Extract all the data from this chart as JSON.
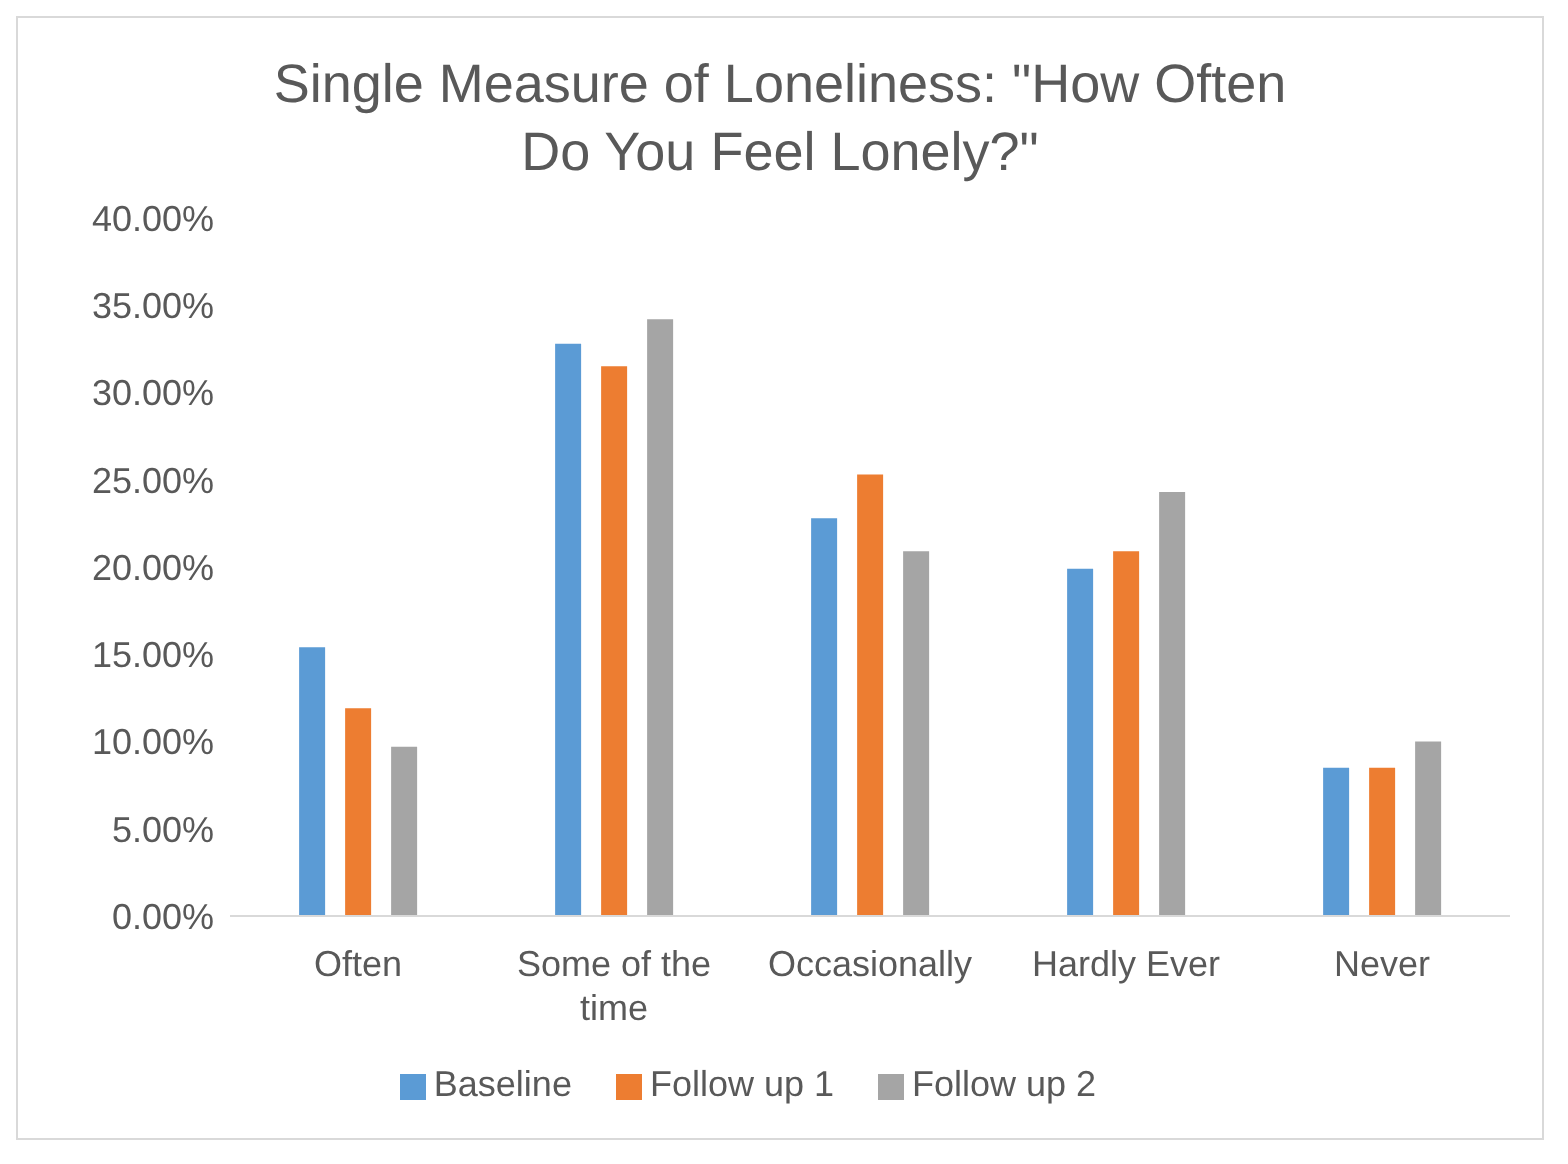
{
  "chart_data": {
    "type": "bar",
    "title": "Single Measure of Loneliness: \"How Often Do You Feel Lonely?\"",
    "categories": [
      "Often",
      "Some of the time",
      "Occasionally",
      "Hardly Ever",
      "Never"
    ],
    "series": [
      {
        "name": "Baseline",
        "color": "#5b9bd5",
        "values": [
          15.4,
          32.8,
          22.8,
          19.9,
          8.5
        ]
      },
      {
        "name": "Follow up 1",
        "color": "#ed7d31",
        "values": [
          11.9,
          31.5,
          25.3,
          20.9,
          8.5
        ]
      },
      {
        "name": "Follow up 2",
        "color": "#a5a5a5",
        "values": [
          9.7,
          34.2,
          20.9,
          24.3,
          10.0
        ]
      }
    ],
    "ylim": [
      0,
      40
    ],
    "yticks": [
      {
        "value": 0,
        "label": "0.00%"
      },
      {
        "value": 5,
        "label": "5.00%"
      },
      {
        "value": 10,
        "label": "10.00%"
      },
      {
        "value": 15,
        "label": "15.00%"
      },
      {
        "value": 20,
        "label": "20.00%"
      },
      {
        "value": 25,
        "label": "25.00%"
      },
      {
        "value": 30,
        "label": "30.00%"
      },
      {
        "value": 35,
        "label": "35.00%"
      },
      {
        "value": 40,
        "label": "40.00%"
      }
    ],
    "grid": false,
    "legend": "bottom"
  }
}
